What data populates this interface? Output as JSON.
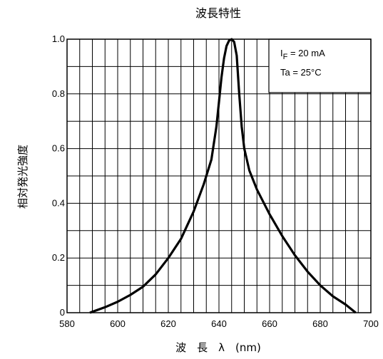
{
  "chart_data": {
    "type": "line",
    "title": "波長特性",
    "xlabel": "波　長　λ　(nm)",
    "ylabel": "相対発光強度",
    "xlim": [
      580,
      700
    ],
    "ylim": [
      0,
      1.0
    ],
    "x_ticks": [
      "580",
      "600",
      "620",
      "640",
      "660",
      "680",
      "700"
    ],
    "y_ticks": [
      "0",
      "0.2",
      "0.4",
      "0.6",
      "0.8",
      "1.0"
    ],
    "x_grid_step": 5,
    "y_grid_step": 0.1,
    "grid": true,
    "annotations": {
      "current_prefix": "I",
      "current_sub": "F",
      "current_value": " = 20 mA",
      "ta": "Ta = 25°C"
    },
    "series": [
      {
        "x": [
          589,
          595,
          600,
          605,
          610,
          615,
          620,
          625,
          630,
          634,
          637,
          639,
          640,
          641,
          642,
          643,
          644,
          645,
          646,
          647,
          648,
          649,
          650,
          652,
          655,
          660,
          665,
          670,
          675,
          680,
          685,
          690,
          694
        ],
        "y": [
          0.0,
          0.02,
          0.04,
          0.065,
          0.095,
          0.14,
          0.2,
          0.27,
          0.37,
          0.47,
          0.56,
          0.68,
          0.77,
          0.86,
          0.93,
          0.975,
          0.995,
          1.0,
          0.99,
          0.94,
          0.8,
          0.68,
          0.6,
          0.52,
          0.45,
          0.36,
          0.28,
          0.21,
          0.15,
          0.1,
          0.06,
          0.03,
          0.0
        ]
      }
    ]
  }
}
